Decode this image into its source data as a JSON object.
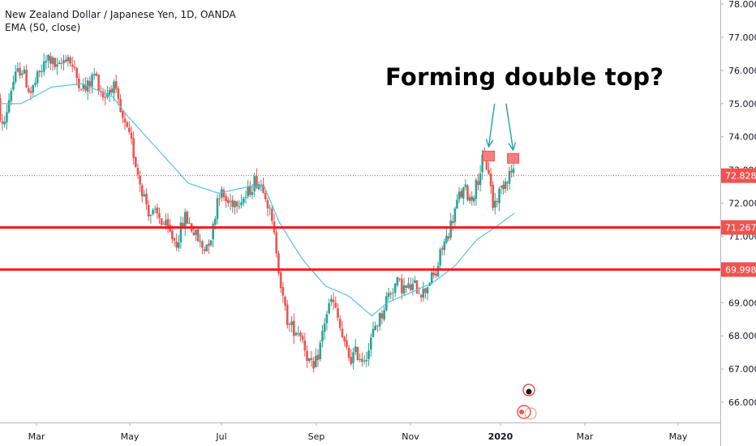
{
  "header": {
    "title": "New Zealand Dollar / Japanese Yen, 1D, OANDA",
    "indicator": "EMA (50, close)"
  },
  "annotation": {
    "text": "Forming double top?"
  },
  "colors": {
    "up": "#26a69a",
    "down": "#ef5350",
    "ema": "#56c4d8",
    "level": "#ff1a1a",
    "arrow": "#1fa3a3",
    "marker": "#f77c80",
    "axis_text": "#131722",
    "last_price_tag": "#ef5350"
  },
  "chart_data": {
    "type": "candlestick",
    "title": "New Zealand Dollar / Japanese Yen, 1D, OANDA",
    "x_tick_labels": [
      "Mar",
      "May",
      "Jul",
      "Sep",
      "Nov",
      "2020",
      "Mar",
      "May"
    ],
    "y_ticks": [
      66.0,
      67.0,
      68.0,
      69.0,
      70.0,
      71.0,
      72.0,
      73.0,
      74.0,
      75.0,
      76.0,
      77.0,
      78.0
    ],
    "y_tick_labels": [
      "66.000",
      "67.000",
      "68.000",
      "69.000",
      "70.000",
      "71.000",
      "72.000",
      "73.000",
      "74.000",
      "75.000",
      "76.000",
      "77.000",
      "78.000"
    ],
    "ylim": [
      65.2,
      78.1
    ],
    "x_anchor_days": [
      0,
      61,
      122,
      184,
      245,
      306,
      366,
      427
    ],
    "x_first_day": -28,
    "x_last_day": 350,
    "price_path": [
      [
        -28,
        75.7
      ],
      [
        -22,
        74.2
      ],
      [
        -16,
        75.6
      ],
      [
        -10,
        76.1
      ],
      [
        -4,
        75.3
      ],
      [
        2,
        75.9
      ],
      [
        8,
        76.4
      ],
      [
        14,
        76.0
      ],
      [
        20,
        76.5
      ],
      [
        26,
        75.8
      ],
      [
        32,
        75.4
      ],
      [
        38,
        75.9
      ],
      [
        44,
        75.2
      ],
      [
        50,
        75.6
      ],
      [
        56,
        74.5
      ],
      [
        62,
        73.8
      ],
      [
        68,
        72.6
      ],
      [
        74,
        71.7
      ],
      [
        80,
        71.6
      ],
      [
        86,
        71.2
      ],
      [
        92,
        70.8
      ],
      [
        98,
        71.6
      ],
      [
        104,
        71.1
      ],
      [
        110,
        70.6
      ],
      [
        116,
        71.1
      ],
      [
        120,
        72.4
      ],
      [
        126,
        72.0
      ],
      [
        132,
        72.1
      ],
      [
        138,
        72.2
      ],
      [
        144,
        72.7
      ],
      [
        150,
        72.5
      ],
      [
        154,
        71.6
      ],
      [
        158,
        70.6
      ],
      [
        162,
        69.1
      ],
      [
        166,
        68.3
      ],
      [
        170,
        68.2
      ],
      [
        174,
        68.1
      ],
      [
        178,
        67.4
      ],
      [
        182,
        66.9
      ],
      [
        186,
        67.6
      ],
      [
        190,
        68.6
      ],
      [
        194,
        69.1
      ],
      [
        198,
        68.5
      ],
      [
        202,
        67.7
      ],
      [
        206,
        67.3
      ],
      [
        210,
        67.5
      ],
      [
        214,
        67.3
      ],
      [
        218,
        67.6
      ],
      [
        222,
        68.3
      ],
      [
        226,
        68.6
      ],
      [
        230,
        69.2
      ],
      [
        236,
        69.6
      ],
      [
        242,
        69.4
      ],
      [
        248,
        69.5
      ],
      [
        254,
        69.3
      ],
      [
        258,
        69.7
      ],
      [
        262,
        69.8
      ],
      [
        266,
        70.6
      ],
      [
        270,
        71.0
      ],
      [
        274,
        71.6
      ],
      [
        278,
        72.2
      ],
      [
        282,
        72.4
      ],
      [
        286,
        72.1
      ],
      [
        290,
        72.6
      ],
      [
        294,
        73.3
      ],
      [
        298,
        73.0
      ],
      [
        301,
        71.9
      ],
      [
        304,
        72.2
      ],
      [
        308,
        72.6
      ],
      [
        312,
        72.9
      ],
      [
        316,
        73.0
      ]
    ],
    "ema_path": [
      [
        -28,
        75.0
      ],
      [
        -10,
        75.0
      ],
      [
        10,
        75.5
      ],
      [
        30,
        75.6
      ],
      [
        50,
        75.2
      ],
      [
        60,
        74.6
      ],
      [
        80,
        73.6
      ],
      [
        100,
        72.6
      ],
      [
        120,
        72.3
      ],
      [
        140,
        72.5
      ],
      [
        150,
        72.5
      ],
      [
        160,
        71.4
      ],
      [
        175,
        70.3
      ],
      [
        190,
        69.5
      ],
      [
        205,
        69.2
      ],
      [
        220,
        68.6
      ],
      [
        230,
        69.0
      ],
      [
        245,
        69.3
      ],
      [
        260,
        69.6
      ],
      [
        275,
        70.1
      ],
      [
        290,
        70.9
      ],
      [
        300,
        71.2
      ],
      [
        316,
        71.7
      ]
    ],
    "series": [
      {
        "name": "NZD/JPY",
        "kind": "candles"
      },
      {
        "name": "EMA (50, close)",
        "kind": "line"
      }
    ],
    "levels": [
      {
        "label": "71.267",
        "value": 71.267
      },
      {
        "label": "69.998",
        "value": 69.998
      }
    ],
    "last_price": {
      "label": "72.828",
      "value": 72.828
    },
    "markers": [
      {
        "day": 298,
        "value": 73.42
      },
      {
        "day": 315,
        "value": 73.35
      }
    ],
    "arrows": [
      {
        "from_day": 302,
        "from_value": 75.0,
        "to_day": 298,
        "to_value": 73.7
      },
      {
        "from_day": 310,
        "from_value": 75.0,
        "to_day": 315,
        "to_value": 73.6
      }
    ],
    "grid": false,
    "legend_position": "top-left"
  }
}
